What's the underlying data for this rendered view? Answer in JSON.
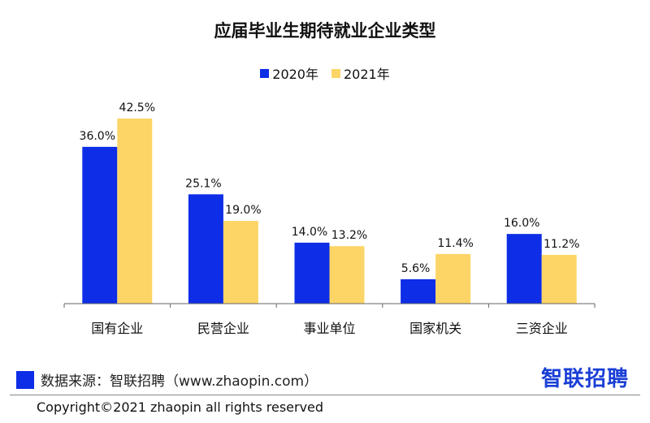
{
  "chart_data": {
    "type": "bar",
    "title": "应届毕业生期待就业企业类型",
    "categories": [
      "国有企业",
      "民营企业",
      "事业单位",
      "国家机关",
      "三资企业"
    ],
    "series": [
      {
        "name": "2020年",
        "color": "#0d2de6",
        "values": [
          36.0,
          25.1,
          14.0,
          5.6,
          16.0
        ],
        "labels": [
          "36.0%",
          "25.1%",
          "14.0%",
          "5.6%",
          "16.0%"
        ]
      },
      {
        "name": "2021年",
        "color": "#fdd567",
        "values": [
          42.5,
          19.0,
          13.2,
          11.4,
          11.2
        ],
        "labels": [
          "42.5%",
          "19.0%",
          "13.2%",
          "11.4%",
          "11.2%"
        ]
      }
    ],
    "ylim": [
      0,
      42.5
    ],
    "grid": false,
    "legend_position": "top-center"
  },
  "footer": {
    "source_text": "数据来源：智联招聘（www.zhaopin.com）",
    "source_color": "#0d2de6",
    "brand_logo": "智联招聘",
    "brand_color": "#1a3fd6",
    "copyright": "Copyright©2021 zhaopin all rights reserved"
  }
}
